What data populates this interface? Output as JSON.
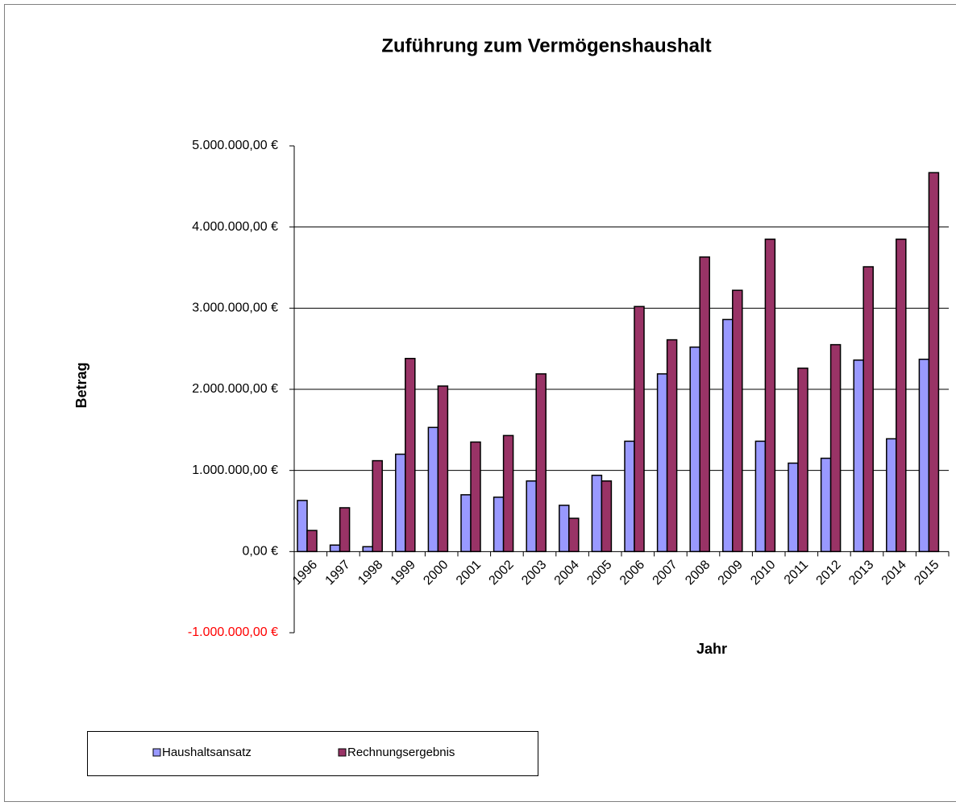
{
  "chart_data": {
    "type": "bar",
    "title": "Zuführung zum Vermögenshaushalt",
    "y_label": "Betrag",
    "x_label": "Jahr",
    "categories": [
      "1996",
      "1997",
      "1998",
      "1999",
      "2000",
      "2001",
      "2002",
      "2003",
      "2004",
      "2005",
      "2006",
      "2007",
      "2008",
      "2009",
      "2010",
      "2011",
      "2012",
      "2013",
      "2014",
      "2015"
    ],
    "series": [
      {
        "name": "Haushaltsansatz",
        "color": "#9999ff",
        "values": [
          630000,
          80000,
          60000,
          1200000,
          1530000,
          700000,
          670000,
          870000,
          570000,
          940000,
          1360000,
          2190000,
          2520000,
          2860000,
          1360000,
          1090000,
          1150000,
          2360000,
          1390000,
          2370000
        ]
      },
      {
        "name": "Rechnungsergebnis",
        "color": "#993366",
        "values": [
          260000,
          540000,
          1120000,
          2380000,
          2040000,
          1350000,
          1430000,
          2190000,
          410000,
          870000,
          3020000,
          2610000,
          3630000,
          3220000,
          3850000,
          2260000,
          2550000,
          3510000,
          3850000,
          4670000
        ]
      }
    ],
    "ylim": [
      -1000000,
      5000000
    ],
    "yticks": [
      {
        "value": -1000000,
        "label": "-1.000.000,00 €"
      },
      {
        "value": 0,
        "label": "0,00 €"
      },
      {
        "value": 1000000,
        "label": "1.000.000,00 €"
      },
      {
        "value": 2000000,
        "label": "2.000.000,00 €"
      },
      {
        "value": 3000000,
        "label": "3.000.000,00 €"
      },
      {
        "value": 4000000,
        "label": "4.000.000,00 €"
      },
      {
        "value": 5000000,
        "label": "5.000.000,00 €"
      }
    ],
    "negative_tick_color": "#ff0000",
    "grid": true,
    "legend": "bottom"
  }
}
